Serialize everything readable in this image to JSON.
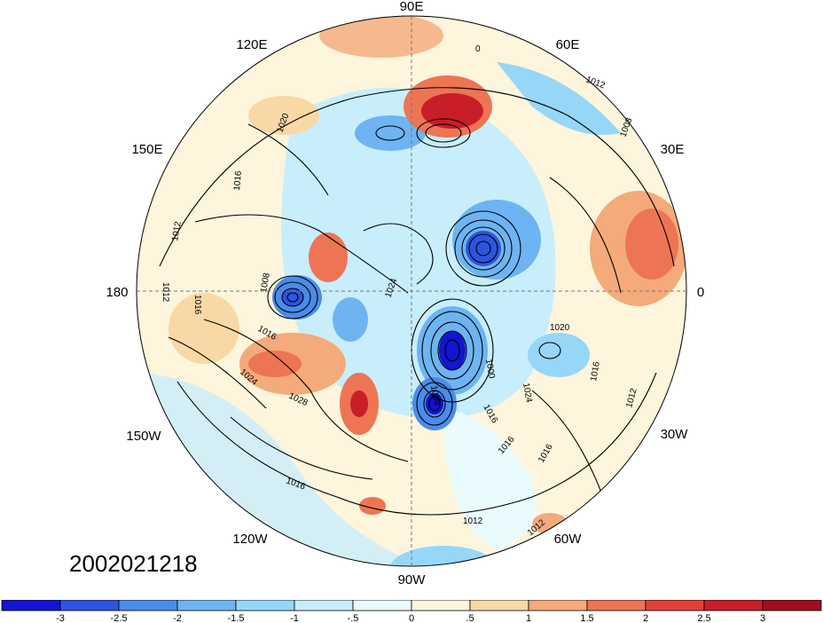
{
  "timestamp": "2002021218",
  "longitude_labels": {
    "deg90E": "90E",
    "deg60E": "60E",
    "deg120E": "120E",
    "deg30E": "30E",
    "deg150E": "150E",
    "deg0": "0",
    "deg180": "180",
    "deg30W": "30W",
    "deg150W": "150W",
    "deg60W": "60W",
    "deg120W": "120W",
    "deg90W": "90W"
  },
  "contour_labels": [
    "1012",
    "1008",
    "1020",
    "1016",
    "1012",
    "1016",
    "1012",
    "1008",
    "1024",
    "1016",
    "1024",
    "1028",
    "1020",
    "1000",
    "1008",
    "1024",
    "1016",
    "1016",
    "1012",
    "1016",
    "1016",
    "1012",
    "1012",
    "1016",
    "0"
  ],
  "colorbar": {
    "labels": [
      "-3",
      "-2.5",
      "-2",
      "-1.5",
      "-1",
      "-.5",
      "0",
      ".5",
      "1",
      "1.5",
      "2",
      "2.5",
      "3"
    ],
    "colors": [
      "#1414d2",
      "#2d55e1",
      "#4a8cea",
      "#6eb4f2",
      "#96d7f8",
      "#c8eefb",
      "#eafbfe",
      "#fdf5dc",
      "#f8d9a6",
      "#f4aa7a",
      "#ed7554",
      "#e2403a",
      "#c81e28",
      "#a00f1e"
    ]
  }
}
